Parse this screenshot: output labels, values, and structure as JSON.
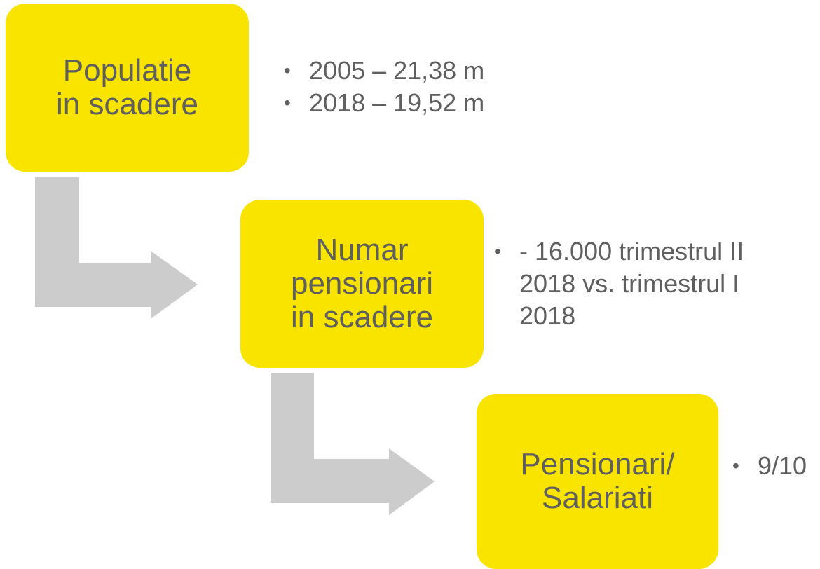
{
  "nodes": [
    {
      "label": [
        "Populatie",
        "in scadere"
      ],
      "bullets": [
        "2005 – 21,38 m",
        "2018 – 19,52 m"
      ]
    },
    {
      "label": [
        "Numar",
        "pensionari",
        "in scadere"
      ],
      "bullets": [
        "- 16.000 trimestrul II 2018 vs. trimestrul I 2018"
      ]
    },
    {
      "label": [
        "Pensionari/",
        "Salariati"
      ],
      "bullets": [
        "9/10"
      ]
    }
  ]
}
